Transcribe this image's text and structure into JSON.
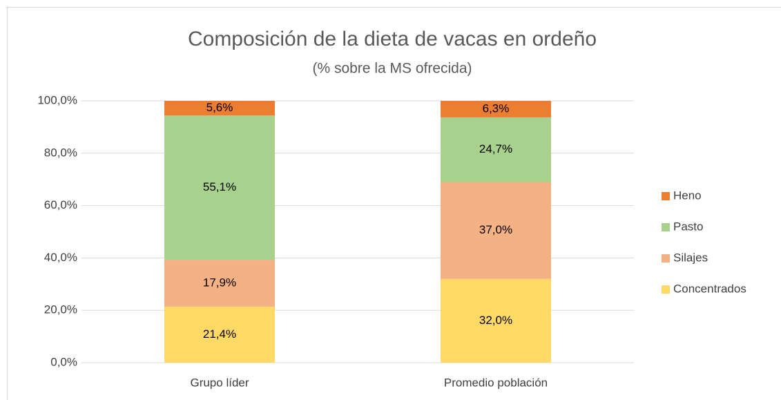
{
  "chart_data": {
    "type": "stacked_bar",
    "title": "Composición de la dieta de vacas en ordeño",
    "subtitle": "(% sobre la MS ofrecida)",
    "categories": [
      "Grupo líder",
      "Promedio población"
    ],
    "series": [
      {
        "name": "Concentrados",
        "color": "#FFD966",
        "values": [
          21.4,
          32.0
        ],
        "value_labels": [
          "21,4%",
          "32,0%"
        ]
      },
      {
        "name": "Silajes",
        "color": "#F4B183",
        "values": [
          17.9,
          37.0
        ],
        "value_labels": [
          "17,9%",
          "37,0%"
        ]
      },
      {
        "name": "Pasto",
        "color": "#A9D18E",
        "values": [
          55.1,
          24.7
        ],
        "value_labels": [
          "55,1%",
          "24,7%"
        ]
      },
      {
        "name": "Heno",
        "color": "#ED7D31",
        "values": [
          5.6,
          6.3
        ],
        "value_labels": [
          "5,6%",
          "6,3%"
        ]
      }
    ],
    "ylim": [
      0,
      100
    ],
    "yticks": [
      {
        "value": 0,
        "label": "0,0%"
      },
      {
        "value": 20,
        "label": "20,0%"
      },
      {
        "value": 40,
        "label": "40,0%"
      },
      {
        "value": 60,
        "label": "60,0%"
      },
      {
        "value": 80,
        "label": "80,0%"
      },
      {
        "value": 100,
        "label": "100,0%"
      }
    ],
    "grid": true,
    "legend": "right"
  }
}
